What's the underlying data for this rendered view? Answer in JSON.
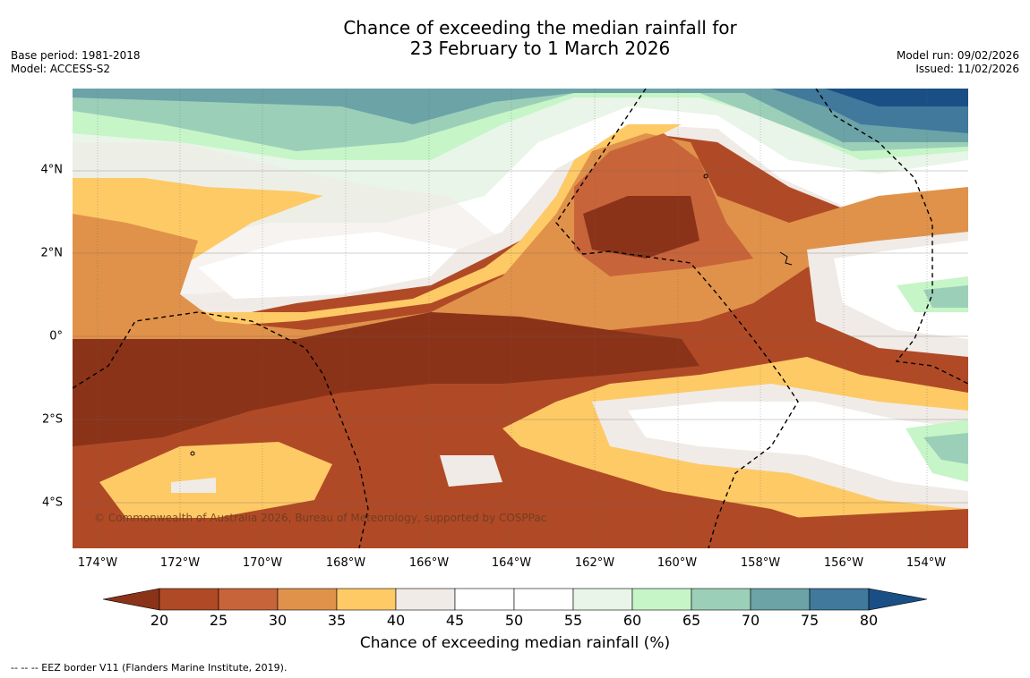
{
  "title": {
    "line1": "Chance of exceeding the median rainfall for",
    "line2": "23 February to 1 March 2026"
  },
  "meta": {
    "base_period": "Base period: 1981-2018",
    "model": "Model: ACCESS-S2",
    "model_run": "Model run: 09/02/2026",
    "issued": "Issued: 11/02/2026"
  },
  "map": {
    "lat_labels": [
      "4°N",
      "2°N",
      "0°",
      "2°S",
      "4°S"
    ],
    "lon_labels": [
      "174°W",
      "172°W",
      "170°W",
      "168°W",
      "166°W",
      "164°W",
      "162°W",
      "160°W",
      "158°W",
      "156°W",
      "154°W"
    ],
    "copyright": "© Commonwealth of Australia 2026, Bureau of Meteorology, supported by COSPPac"
  },
  "legend": {
    "ticks": [
      "20",
      "25",
      "30",
      "35",
      "40",
      "45",
      "50",
      "55",
      "60",
      "65",
      "70",
      "75",
      "80"
    ],
    "colors": [
      "#8b3318",
      "#b04a26",
      "#c8643a",
      "#e0924a",
      "#fdca66",
      "#f0ebe6",
      "#ffffff",
      "#ffffff",
      "#e8f5e8",
      "#c6f5c8",
      "#9ccfb8",
      "#6ba3a7",
      "#40799c",
      "#1a4f86"
    ],
    "label": "Chance of exceeding median rainfall (%)"
  },
  "footnote": "--  --  -- EEZ border V11 (Flanders Marine Institute, 2019)."
}
